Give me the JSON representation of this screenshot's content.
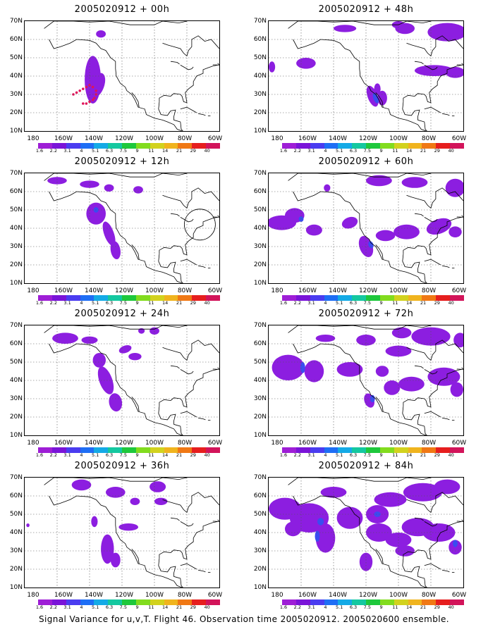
{
  "caption": "Signal Variance for u,v,T. Flight 46. Observation time 2005020912. 2005020600 ensemble.",
  "y_labels": [
    "70N",
    "60N",
    "50N",
    "40N",
    "30N",
    "20N",
    "10N"
  ],
  "x_labels": [
    "180",
    "160W",
    "140W",
    "120W",
    "100W",
    "80W",
    "60W"
  ],
  "colorbar": {
    "labels": [
      "1.6",
      "2.2",
      "3.1",
      "4",
      "5.1",
      "6.3",
      "7.5",
      "9",
      "11",
      "14",
      "21",
      "29",
      "40"
    ],
    "colors": [
      "#9e1ed6",
      "#7a14d8",
      "#4a3cf0",
      "#1e6ef5",
      "#14aae6",
      "#14c8a0",
      "#1ec83c",
      "#82dc1e",
      "#d2d21e",
      "#f0b41e",
      "#f07814",
      "#e61e1e",
      "#d2145a"
    ]
  },
  "chart_data": [
    {
      "type": "heatmap",
      "title": "2005020912 + 00h",
      "lead_hours": 0,
      "xlim": [
        "180",
        "60W"
      ],
      "ylim": [
        "10N",
        "70N"
      ],
      "grid": true
    },
    {
      "type": "heatmap",
      "title": "2005020912 + 48h",
      "lead_hours": 48,
      "xlim": [
        "180",
        "60W"
      ],
      "ylim": [
        "10N",
        "70N"
      ],
      "grid": true
    },
    {
      "type": "heatmap",
      "title": "2005020912 + 12h",
      "lead_hours": 12,
      "xlim": [
        "180",
        "60W"
      ],
      "ylim": [
        "10N",
        "70N"
      ],
      "grid": true
    },
    {
      "type": "heatmap",
      "title": "2005020912 + 60h",
      "lead_hours": 60,
      "xlim": [
        "180",
        "60W"
      ],
      "ylim": [
        "10N",
        "70N"
      ],
      "grid": true
    },
    {
      "type": "heatmap",
      "title": "2005020912 + 24h",
      "lead_hours": 24,
      "xlim": [
        "180",
        "60W"
      ],
      "ylim": [
        "10N",
        "70N"
      ],
      "grid": true
    },
    {
      "type": "heatmap",
      "title": "2005020912 + 72h",
      "lead_hours": 72,
      "xlim": [
        "180",
        "60W"
      ],
      "ylim": [
        "10N",
        "70N"
      ],
      "grid": true
    },
    {
      "type": "heatmap",
      "title": "2005020912 + 36h",
      "lead_hours": 36,
      "xlim": [
        "180",
        "60W"
      ],
      "ylim": [
        "10N",
        "70N"
      ],
      "grid": true
    },
    {
      "type": "heatmap",
      "title": "2005020912 + 84h",
      "lead_hours": 84,
      "xlim": [
        "180",
        "60W"
      ],
      "ylim": [
        "10N",
        "70N"
      ],
      "grid": true
    }
  ]
}
